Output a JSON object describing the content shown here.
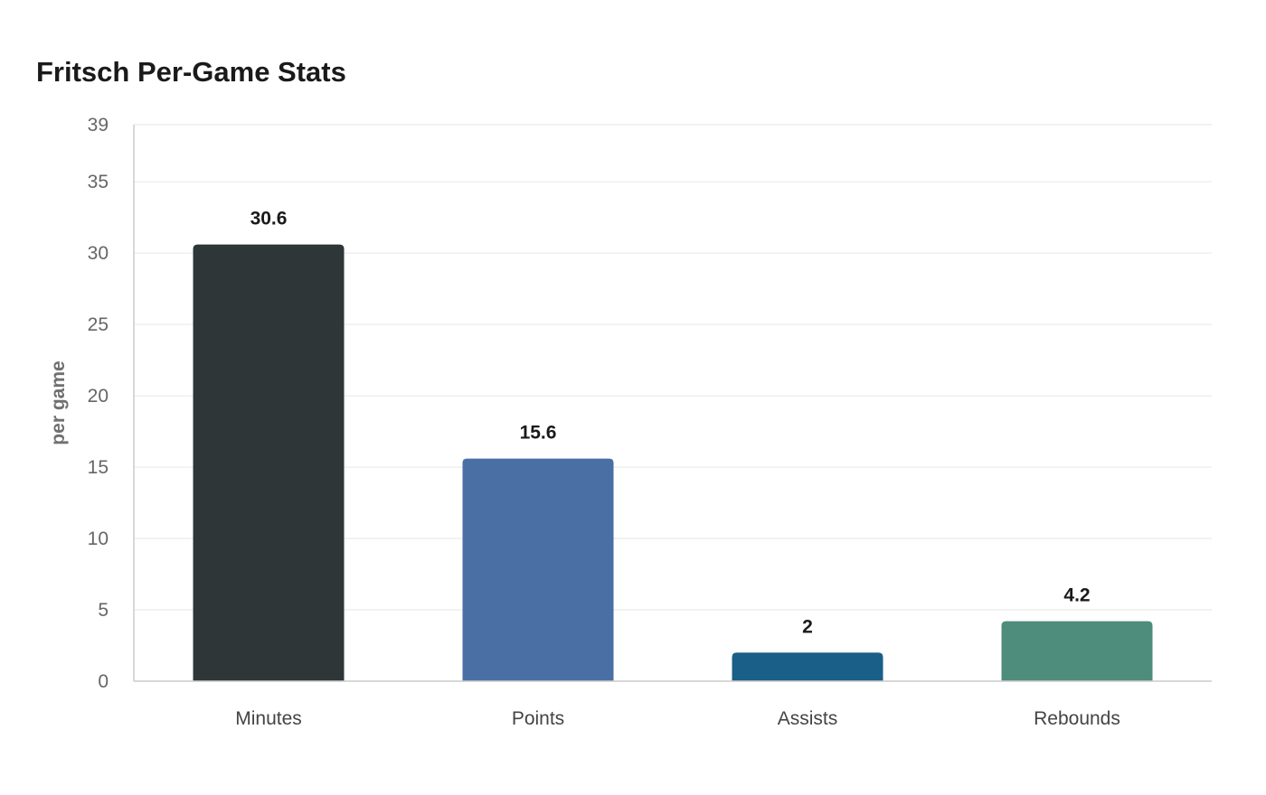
{
  "chart_data": {
    "type": "bar",
    "title": "Fritsch Per-Game Stats",
    "xlabel": "",
    "ylabel": "per game",
    "ylim": [
      0,
      39
    ],
    "yticks": [
      0,
      5,
      10,
      15,
      20,
      25,
      30,
      35,
      39
    ],
    "categories": [
      "Minutes",
      "Points",
      "Assists",
      "Rebounds"
    ],
    "values": [
      30.6,
      15.6,
      2,
      4.2
    ],
    "data_labels": [
      "30.6",
      "15.6",
      "2",
      "4.2"
    ],
    "colors": [
      "#2e3638",
      "#4a6fa5",
      "#1a5f87",
      "#4e8c7b"
    ],
    "grid": true,
    "legend": "none"
  }
}
